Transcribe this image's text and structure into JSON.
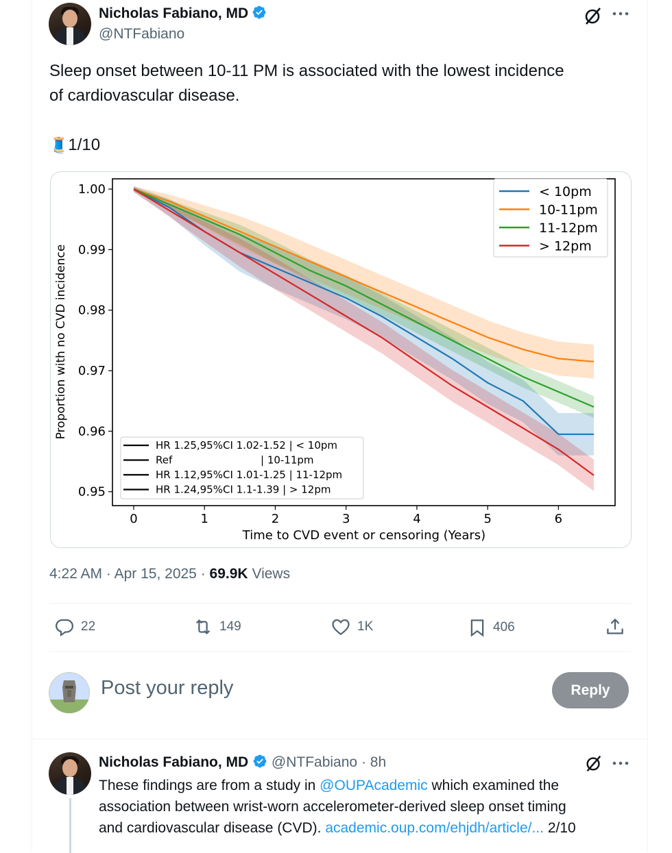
{
  "tweet": {
    "author_name": "Nicholas Fabiano, MD",
    "handle": "@NTFabiano",
    "text_line1": "Sleep onset between 10-11 PM is associated with the lowest incidence",
    "text_line2": "of cardiovascular disease.",
    "thread_counter": "1/10",
    "thread_emoji": "🧵",
    "time": "4:22 AM",
    "date": "Apr 15, 2025",
    "views_count": "69.9K",
    "views_label": "Views",
    "separator": "·"
  },
  "actions": {
    "replies": "22",
    "reposts": "149",
    "likes": "1K",
    "bookmarks": "406"
  },
  "composer": {
    "placeholder": "Post your reply",
    "reply_button": "Reply"
  },
  "reply_tweet": {
    "author_name": "Nicholas Fabiano, MD",
    "handle": "@NTFabiano",
    "age": "8h",
    "text_a": "These findings are from a study in ",
    "mention": "@OUPAcademic",
    "text_b": " which examined the",
    "text_line2": "association between wrist-worn accelerometer-derived sleep onset timing",
    "text_c": "and cardiovascular disease (CVD). ",
    "link": "academic.oup.com/ehjdh/article/...",
    "counter": " 2/10"
  },
  "colors": {
    "accent": "#1d9bf0",
    "verified": "#1d9bf0",
    "series_lt10": "#1f77b4",
    "series_10_11": "#ff7f0e",
    "series_11_12": "#2ca02c",
    "series_gt12": "#d62728"
  },
  "chart_data": {
    "type": "line",
    "xlabel": "Time to CVD event or censoring (Years)",
    "ylabel": "Proportion with no CVD incidence",
    "xlim": [
      -0.3,
      6.8
    ],
    "ylim": [
      0.9477,
      1.0017
    ],
    "x_ticks": [
      "0",
      "1",
      "2",
      "3",
      "4",
      "5",
      "6"
    ],
    "y_ticks": [
      "1.00",
      "0.99",
      "0.98",
      "0.97",
      "0.96",
      "0.95"
    ],
    "legend_top_right": [
      "< 10pm",
      "10-11pm",
      "11-12pm",
      "> 12pm"
    ],
    "annotation_lines": [
      "HR 1.25,95%CI 1.02-1.52 | < 10pm",
      "Ref                           | 10-11pm",
      "HR 1.12,95%CI 1.01-1.25 | 11-12pm",
      "HR 1.24,95%CI 1.1-1.39 | > 12pm"
    ],
    "series": [
      {
        "name": "< 10pm",
        "x": [
          0,
          0.5,
          1,
          1.5,
          2,
          2.5,
          3,
          3.5,
          4,
          4.5,
          5,
          5.5,
          6,
          6.5
        ],
        "y": [
          1.0,
          0.997,
          0.993,
          0.9895,
          0.987,
          0.9845,
          0.982,
          0.979,
          0.9755,
          0.972,
          0.968,
          0.965,
          0.9595,
          0.9595
        ],
        "ci": 0.0035
      },
      {
        "name": "10-11pm",
        "x": [
          0,
          0.5,
          1,
          1.5,
          2,
          2.5,
          3,
          3.5,
          4,
          4.5,
          5,
          5.5,
          6,
          6.5
        ],
        "y": [
          1.0,
          0.998,
          0.9955,
          0.993,
          0.9905,
          0.988,
          0.9855,
          0.983,
          0.9805,
          0.978,
          0.9755,
          0.9735,
          0.972,
          0.9715
        ],
        "ci": 0.0028
      },
      {
        "name": "11-12pm",
        "x": [
          0,
          0.5,
          1,
          1.5,
          2,
          2.5,
          3,
          3.5,
          4,
          4.5,
          5,
          5.5,
          6,
          6.5
        ],
        "y": [
          1.0,
          0.9975,
          0.995,
          0.9925,
          0.9895,
          0.9865,
          0.984,
          0.981,
          0.978,
          0.975,
          0.972,
          0.969,
          0.9665,
          0.964
        ],
        "ci": 0.0018
      },
      {
        "name": "> 12pm",
        "x": [
          0,
          0.5,
          1,
          1.5,
          2,
          2.5,
          3,
          3.5,
          4,
          4.5,
          5,
          5.5,
          6,
          6.5
        ],
        "y": [
          1.0,
          0.9965,
          0.993,
          0.9895,
          0.986,
          0.9825,
          0.979,
          0.9755,
          0.9715,
          0.9675,
          0.964,
          0.9605,
          0.957,
          0.9527
        ],
        "ci": 0.0026
      }
    ]
  }
}
